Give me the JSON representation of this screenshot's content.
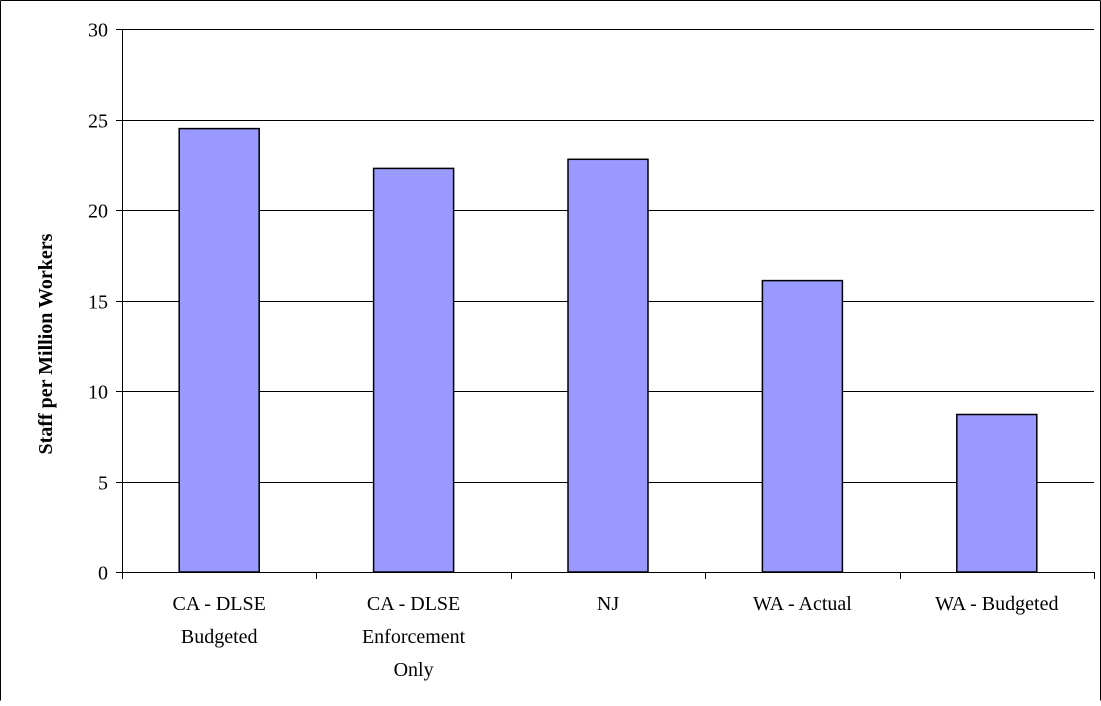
{
  "chart_data": {
    "type": "bar",
    "title": "",
    "xlabel": "",
    "ylabel": "Staff per Million Workers",
    "categories": [
      [
        "CA - DLSE",
        "Budgeted"
      ],
      [
        "CA - DLSE",
        "Enforcement",
        "Only"
      ],
      [
        "NJ"
      ],
      [
        "WA - Actual"
      ],
      [
        "WA - Budgeted"
      ]
    ],
    "values": [
      24.5,
      22.3,
      22.8,
      16.1,
      8.7
    ],
    "ylim": [
      0,
      30
    ],
    "yticks": [
      "0",
      "5",
      "10",
      "15",
      "20",
      "25",
      "30"
    ],
    "grid": true,
    "legend": "none",
    "colors": {
      "bar_fill": "#9999ff",
      "bar_stroke": "#000000",
      "grid": "#000000",
      "axis": "#000000"
    }
  }
}
